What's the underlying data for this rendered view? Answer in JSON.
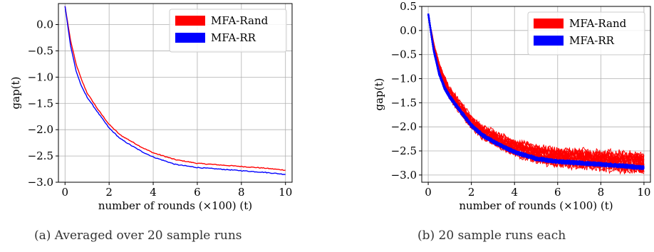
{
  "chart_data": [
    {
      "type": "line",
      "caption": "(a) Averaged over 20 sample runs",
      "xlabel": "number of rounds (×100) (t)",
      "ylabel": "gap(t)",
      "xlim": [
        -0.3,
        10.3
      ],
      "ylim": [
        -3.0,
        0.4
      ],
      "xticks": [
        0,
        2,
        4,
        6,
        8,
        10
      ],
      "yticks": [
        0.0,
        -0.5,
        -1.0,
        -1.5,
        -2.0,
        -2.5,
        -3.0
      ],
      "ytick_labels": [
        "0.0",
        "−0.5",
        "−1.0",
        "−1.5",
        "−2.0",
        "−2.5",
        "−3.0"
      ],
      "grid": true,
      "legend": "top-right",
      "series": [
        {
          "name": "MFA-Rand",
          "color": "#ff0000",
          "x": [
            0,
            0.25,
            0.5,
            0.75,
            1,
            1.5,
            2,
            2.5,
            3,
            3.5,
            4,
            5,
            6,
            7,
            8,
            9,
            10
          ],
          "y": [
            0.35,
            -0.3,
            -0.75,
            -1.05,
            -1.3,
            -1.62,
            -1.9,
            -2.1,
            -2.22,
            -2.34,
            -2.44,
            -2.57,
            -2.64,
            -2.67,
            -2.7,
            -2.73,
            -2.77
          ]
        },
        {
          "name": "MFA-RR",
          "color": "#0000ff",
          "x": [
            0,
            0.25,
            0.5,
            0.75,
            1,
            1.5,
            2,
            2.5,
            3,
            3.5,
            4,
            5,
            6,
            7,
            8,
            9,
            10
          ],
          "y": [
            0.35,
            -0.4,
            -0.88,
            -1.18,
            -1.38,
            -1.68,
            -1.97,
            -2.17,
            -2.3,
            -2.42,
            -2.52,
            -2.66,
            -2.72,
            -2.75,
            -2.78,
            -2.81,
            -2.85
          ]
        }
      ]
    },
    {
      "type": "line",
      "caption": "(b) 20 sample runs each",
      "xlabel": "number of rounds (×100) (t)",
      "ylabel": "gap(t)",
      "xlim": [
        -0.3,
        10.3
      ],
      "ylim": [
        -3.15,
        0.5
      ],
      "xticks": [
        0,
        2,
        4,
        6,
        8,
        10
      ],
      "yticks": [
        0.5,
        0.0,
        -0.5,
        -1.0,
        -1.5,
        -2.0,
        -2.5,
        -3.0
      ],
      "ytick_labels": [
        "0.5",
        "0.0",
        "−0.5",
        "−1.0",
        "−1.5",
        "−2.0",
        "−2.5",
        "−3.0"
      ],
      "grid": true,
      "legend": "top-right",
      "runs_per_series": 20,
      "series": [
        {
          "name": "MFA-Rand",
          "color": "#ff0000",
          "x": [
            0,
            0.25,
            0.5,
            0.75,
            1,
            1.5,
            2,
            2.5,
            3,
            3.5,
            4,
            5,
            6,
            7,
            8,
            9,
            10
          ],
          "y": [
            0.35,
            -0.3,
            -0.75,
            -1.05,
            -1.3,
            -1.62,
            -1.9,
            -2.1,
            -2.22,
            -2.34,
            -2.44,
            -2.57,
            -2.64,
            -2.67,
            -2.7,
            -2.73,
            -2.77
          ],
          "spread": [
            0,
            0.08,
            0.12,
            0.14,
            0.15,
            0.16,
            0.16,
            0.17,
            0.18,
            0.19,
            0.2,
            0.22,
            0.23,
            0.24,
            0.24,
            0.25,
            0.25
          ]
        },
        {
          "name": "MFA-RR",
          "color": "#0000ff",
          "x": [
            0,
            0.25,
            0.5,
            0.75,
            1,
            1.5,
            2,
            2.5,
            3,
            3.5,
            4,
            5,
            6,
            7,
            8,
            9,
            10
          ],
          "y": [
            0.35,
            -0.4,
            -0.88,
            -1.18,
            -1.38,
            -1.68,
            -1.97,
            -2.17,
            -2.3,
            -2.42,
            -2.52,
            -2.66,
            -2.72,
            -2.75,
            -2.78,
            -2.81,
            -2.85
          ],
          "spread": [
            0,
            0.03,
            0.04,
            0.04,
            0.04,
            0.04,
            0.04,
            0.04,
            0.04,
            0.04,
            0.04,
            0.04,
            0.04,
            0.04,
            0.04,
            0.04,
            0.04
          ]
        }
      ]
    }
  ]
}
